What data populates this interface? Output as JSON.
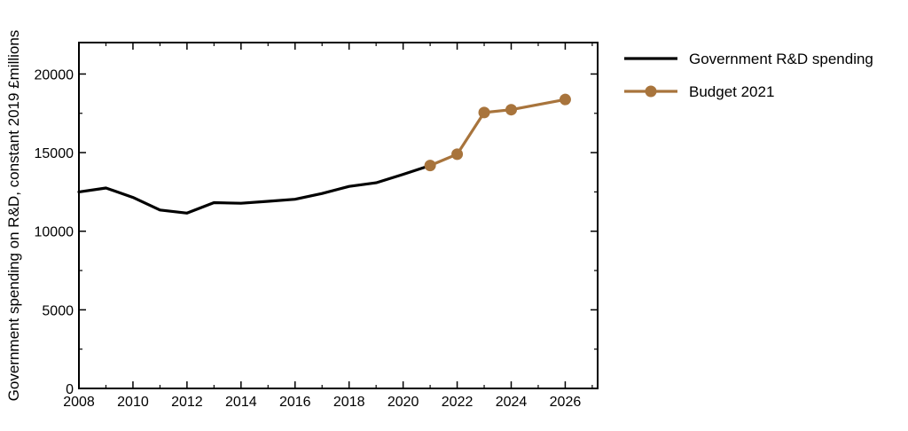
{
  "chart_data": {
    "type": "line",
    "title": "",
    "xlabel": "",
    "ylabel": "Government spending on R&D, constant 2019 £millions",
    "xlim": [
      2008,
      2027.2
    ],
    "ylim": [
      0,
      22000
    ],
    "x_ticks": [
      2008,
      2010,
      2012,
      2014,
      2016,
      2018,
      2020,
      2022,
      2024,
      2026
    ],
    "y_ticks": [
      0,
      5000,
      10000,
      15000,
      20000
    ],
    "grid": false,
    "legend_position": "right, outside plot",
    "series": [
      {
        "name": "Government R&D spending",
        "color": "#000000",
        "marker": "none",
        "points": [
          {
            "x": 2008,
            "y": 12500
          },
          {
            "x": 2009,
            "y": 12750
          },
          {
            "x": 2010,
            "y": 12150
          },
          {
            "x": 2011,
            "y": 11350
          },
          {
            "x": 2012,
            "y": 11150
          },
          {
            "x": 2013,
            "y": 11820
          },
          {
            "x": 2014,
            "y": 11780
          },
          {
            "x": 2015,
            "y": 11900
          },
          {
            "x": 2016,
            "y": 12030
          },
          {
            "x": 2017,
            "y": 12400
          },
          {
            "x": 2018,
            "y": 12850
          },
          {
            "x": 2019,
            "y": 13080
          },
          {
            "x": 2020,
            "y": 13620
          },
          {
            "x": 2021,
            "y": 14180
          }
        ]
      },
      {
        "name": "Budget 2021",
        "color": "#a8743c",
        "marker": "circle",
        "points": [
          {
            "x": 2021,
            "y": 14180
          },
          {
            "x": 2022,
            "y": 14900
          },
          {
            "x": 2023,
            "y": 17550
          },
          {
            "x": 2024,
            "y": 17730
          },
          {
            "x": 2026,
            "y": 18380
          }
        ]
      }
    ]
  }
}
